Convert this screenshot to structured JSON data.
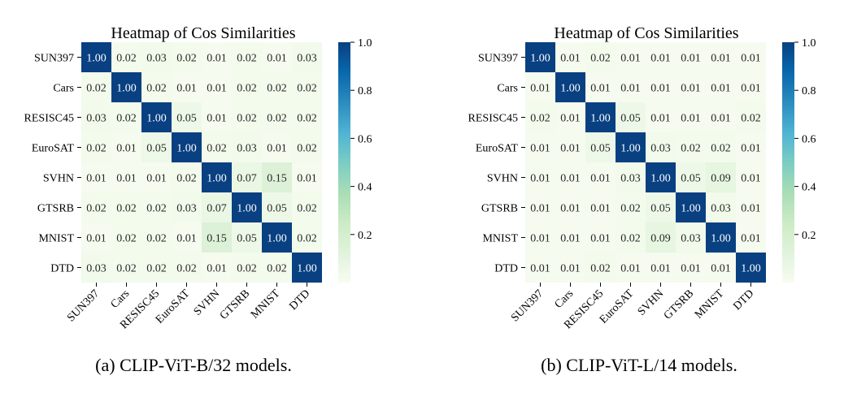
{
  "colors": {
    "colormap": "GnBu",
    "colorbar_stops": [
      "#f7fcf0",
      "#e0f3db",
      "#ccebc5",
      "#a8ddb5",
      "#7bccc4",
      "#4eb3d3",
      "#2b8cbe",
      "#0868ac",
      "#084081"
    ],
    "text_light": "#ffffff",
    "text_dark": "#262626"
  },
  "chart_data": [
    {
      "type": "heatmap",
      "title": "Heatmap of Cos Similarities",
      "caption": "(a) CLIP-ViT-B/32 models.",
      "row_labels": [
        "SUN397",
        "Cars",
        "RESISC45",
        "EuroSAT",
        "SVHN",
        "GTSRB",
        "MNIST",
        "DTD"
      ],
      "col_labels": [
        "SUN397",
        "Cars",
        "RESISC45",
        "EuroSAT",
        "SVHN",
        "GTSRB",
        "MNIST",
        "DTD"
      ],
      "values": [
        [
          1.0,
          0.02,
          0.03,
          0.02,
          0.01,
          0.02,
          0.01,
          0.03
        ],
        [
          0.02,
          1.0,
          0.02,
          0.01,
          0.01,
          0.02,
          0.02,
          0.02
        ],
        [
          0.03,
          0.02,
          1.0,
          0.05,
          0.01,
          0.02,
          0.02,
          0.02
        ],
        [
          0.02,
          0.01,
          0.05,
          1.0,
          0.02,
          0.03,
          0.01,
          0.02
        ],
        [
          0.01,
          0.01,
          0.01,
          0.02,
          1.0,
          0.07,
          0.15,
          0.01
        ],
        [
          0.02,
          0.02,
          0.02,
          0.03,
          0.07,
          1.0,
          0.05,
          0.02
        ],
        [
          0.01,
          0.02,
          0.02,
          0.01,
          0.15,
          0.05,
          1.0,
          0.02
        ],
        [
          0.03,
          0.02,
          0.02,
          0.02,
          0.01,
          0.02,
          0.02,
          1.0
        ]
      ],
      "value_labels": [
        [
          "1.00",
          "0.02",
          "0.03",
          "0.02",
          "0.01",
          "0.02",
          "0.01",
          "0.03"
        ],
        [
          "0.02",
          "1.00",
          "0.02",
          "0.01",
          "0.01",
          "0.02",
          "0.02",
          "0.02"
        ],
        [
          "0.03",
          "0.02",
          "1.00",
          "0.05",
          "0.01",
          "0.02",
          "0.02",
          "0.02"
        ],
        [
          "0.02",
          "0.01",
          "0.05",
          "1.00",
          "0.02",
          "0.03",
          "0.01",
          "0.02"
        ],
        [
          "0.01",
          "0.01",
          "0.01",
          "0.02",
          "1.00",
          "0.07",
          "0.15",
          "0.01"
        ],
        [
          "0.02",
          "0.02",
          "0.02",
          "0.03",
          "0.07",
          "1.00",
          "0.05",
          "0.02"
        ],
        [
          "0.01",
          "0.02",
          "0.02",
          "0.01",
          "0.15",
          "0.05",
          "1.00",
          "0.02"
        ],
        [
          "0.03",
          "0.02",
          "0.02",
          "0.02",
          "0.01",
          "0.02",
          "0.02",
          "1.00"
        ]
      ],
      "colorbar": {
        "range": [
          0.0,
          1.0
        ],
        "ticks": [
          0.2,
          0.4,
          0.6,
          0.8,
          1.0
        ],
        "tick_labels": [
          "0.2",
          "0.4",
          "0.6",
          "0.8",
          "1.0"
        ]
      }
    },
    {
      "type": "heatmap",
      "title": "Heatmap of Cos Similarities",
      "caption": "(b) CLIP-ViT-L/14 models.",
      "row_labels": [
        "SUN397",
        "Cars",
        "RESISC45",
        "EuroSAT",
        "SVHN",
        "GTSRB",
        "MNIST",
        "DTD"
      ],
      "col_labels": [
        "SUN397",
        "Cars",
        "RESISC45",
        "EuroSAT",
        "SVHN",
        "GTSRB",
        "MNIST",
        "DTD"
      ],
      "values": [
        [
          1.0,
          0.01,
          0.02,
          0.01,
          0.01,
          0.01,
          0.01,
          0.01
        ],
        [
          0.01,
          1.0,
          0.01,
          0.01,
          0.01,
          0.01,
          0.01,
          0.01
        ],
        [
          0.02,
          0.01,
          1.0,
          0.05,
          0.01,
          0.01,
          0.01,
          0.02
        ],
        [
          0.01,
          0.01,
          0.05,
          1.0,
          0.03,
          0.02,
          0.02,
          0.01
        ],
        [
          0.01,
          0.01,
          0.01,
          0.03,
          1.0,
          0.05,
          0.09,
          0.01
        ],
        [
          0.01,
          0.01,
          0.01,
          0.02,
          0.05,
          1.0,
          0.03,
          0.01
        ],
        [
          0.01,
          0.01,
          0.01,
          0.02,
          0.09,
          0.03,
          1.0,
          0.01
        ],
        [
          0.01,
          0.01,
          0.02,
          0.01,
          0.01,
          0.01,
          0.01,
          1.0
        ]
      ],
      "value_labels": [
        [
          "1.00",
          "0.01",
          "0.02",
          "0.01",
          "0.01",
          "0.01",
          "0.01",
          "0.01"
        ],
        [
          "0.01",
          "1.00",
          "0.01",
          "0.01",
          "0.01",
          "0.01",
          "0.01",
          "0.01"
        ],
        [
          "0.02",
          "0.01",
          "1.00",
          "0.05",
          "0.01",
          "0.01",
          "0.01",
          "0.02"
        ],
        [
          "0.01",
          "0.01",
          "0.05",
          "1.00",
          "0.03",
          "0.02",
          "0.02",
          "0.01"
        ],
        [
          "0.01",
          "0.01",
          "0.01",
          "0.03",
          "1.00",
          "0.05",
          "0.09",
          "0.01"
        ],
        [
          "0.01",
          "0.01",
          "0.01",
          "0.02",
          "0.05",
          "1.00",
          "0.03",
          "0.01"
        ],
        [
          "0.01",
          "0.01",
          "0.01",
          "0.02",
          "0.09",
          "0.03",
          "1.00",
          "0.01"
        ],
        [
          "0.01",
          "0.01",
          "0.02",
          "0.01",
          "0.01",
          "0.01",
          "0.01",
          "1.00"
        ]
      ],
      "colorbar": {
        "range": [
          0.0,
          1.0
        ],
        "ticks": [
          0.2,
          0.4,
          0.6,
          0.8,
          1.0
        ],
        "tick_labels": [
          "0.2",
          "0.4",
          "0.6",
          "0.8",
          "1.0"
        ]
      }
    }
  ]
}
